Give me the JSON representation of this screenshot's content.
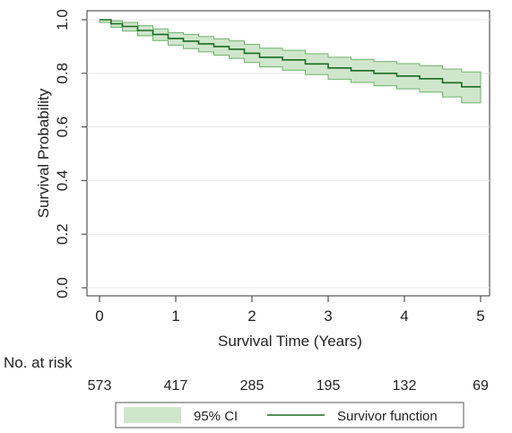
{
  "chart_data": {
    "type": "line",
    "title": "",
    "xlabel": "Survival Time (Years)",
    "ylabel": "Survival Probability",
    "xlim": [
      0,
      5
    ],
    "ylim": [
      0,
      1
    ],
    "x_ticks": [
      0,
      1,
      2,
      3,
      4,
      5
    ],
    "y_ticks": [
      0.0,
      0.2,
      0.4,
      0.6,
      0.8,
      1.0
    ],
    "y_tick_labels": [
      "0.0",
      "0.2",
      "0.4",
      "0.6",
      "0.8",
      "1.0"
    ],
    "grid": "horizontal",
    "series": [
      {
        "name": "Survivor function",
        "kind": "step",
        "color": "#1a6b22",
        "x": [
          0,
          0.15,
          0.3,
          0.5,
          0.7,
          0.9,
          1.1,
          1.3,
          1.5,
          1.7,
          1.9,
          2.1,
          2.4,
          2.7,
          3.0,
          3.3,
          3.6,
          3.9,
          4.2,
          4.5,
          4.75,
          5.0
        ],
        "y": [
          1.0,
          0.985,
          0.975,
          0.96,
          0.945,
          0.93,
          0.92,
          0.91,
          0.9,
          0.89,
          0.875,
          0.86,
          0.85,
          0.835,
          0.82,
          0.81,
          0.8,
          0.79,
          0.78,
          0.765,
          0.75,
          0.75
        ]
      },
      {
        "name": "95% CI",
        "kind": "band",
        "color": "#cfe6cc",
        "x": [
          0,
          0.15,
          0.3,
          0.5,
          0.7,
          0.9,
          1.1,
          1.3,
          1.5,
          1.7,
          1.9,
          2.1,
          2.4,
          2.7,
          3.0,
          3.3,
          3.6,
          3.9,
          4.2,
          4.5,
          4.75,
          5.0
        ],
        "lower": [
          0.99,
          0.972,
          0.958,
          0.94,
          0.922,
          0.905,
          0.892,
          0.88,
          0.868,
          0.856,
          0.84,
          0.824,
          0.812,
          0.795,
          0.778,
          0.766,
          0.754,
          0.742,
          0.73,
          0.712,
          0.69,
          0.69
        ],
        "upper": [
          1.0,
          0.996,
          0.99,
          0.978,
          0.966,
          0.952,
          0.945,
          0.937,
          0.929,
          0.921,
          0.908,
          0.894,
          0.886,
          0.873,
          0.86,
          0.852,
          0.844,
          0.836,
          0.828,
          0.816,
          0.805,
          0.805
        ]
      }
    ],
    "risk_table": {
      "label": "No. at risk",
      "times": [
        0,
        1,
        2,
        3,
        4,
        5
      ],
      "values": [
        "573",
        "417",
        "285",
        "195",
        "132",
        "69"
      ]
    },
    "legend": {
      "placement": "bottom",
      "items": [
        {
          "label": "95% CI",
          "kind": "band",
          "color": "#cfe6cc"
        },
        {
          "label": "Survivor function",
          "kind": "line",
          "color": "#1a6b22"
        }
      ]
    }
  }
}
